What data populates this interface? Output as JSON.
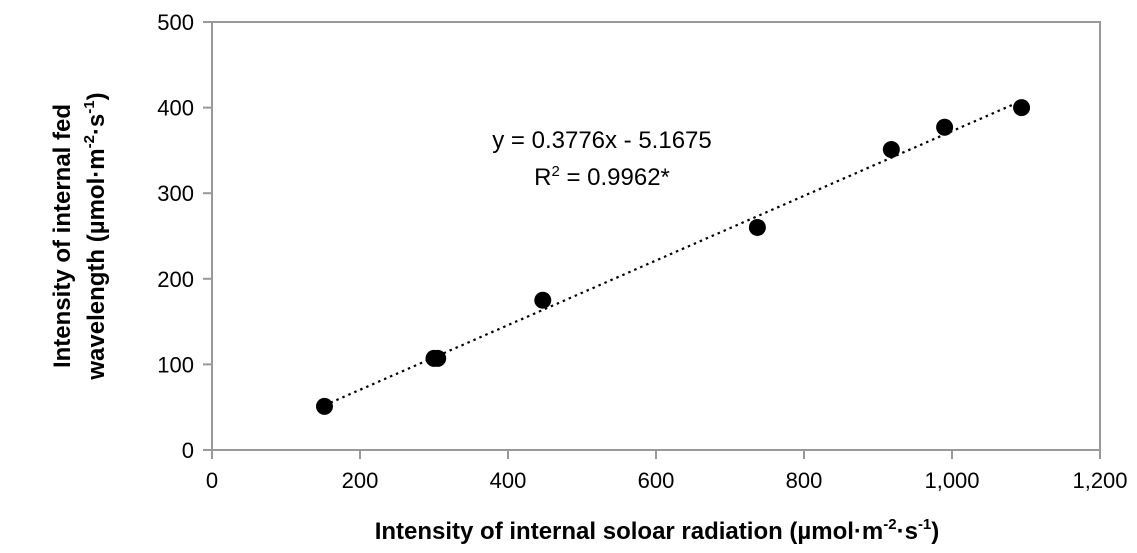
{
  "chart_data": {
    "type": "scatter",
    "x_axis": {
      "label_main": "Intensity of internal soloar radiation (µmol·m",
      "sup1": "-2",
      "mid": "·s",
      "sup2": "-1",
      "close": ")",
      "range": [
        0,
        1200
      ],
      "ticks": [
        0,
        200,
        400,
        600,
        800,
        1000,
        1200
      ],
      "tick_labels": [
        "0",
        "200",
        "400",
        "600",
        "800",
        "1,000",
        "1,200"
      ]
    },
    "y_axis": {
      "label_line1": "Intensity of internal fed",
      "label_line2_main": "wavelength (µmol·m",
      "sup1": "-2",
      "mid": "·s",
      "sup2": "-1",
      "close": ")",
      "range": [
        0,
        500
      ],
      "ticks": [
        0,
        100,
        200,
        300,
        400,
        500
      ],
      "tick_labels": [
        "0",
        "100",
        "200",
        "300",
        "400",
        "500"
      ]
    },
    "points": [
      {
        "x": 152,
        "y": 51
      },
      {
        "x": 300,
        "y": 107
      },
      {
        "x": 305,
        "y": 107
      },
      {
        "x": 447,
        "y": 175
      },
      {
        "x": 737,
        "y": 260
      },
      {
        "x": 918,
        "y": 351
      },
      {
        "x": 990,
        "y": 377
      },
      {
        "x": 1094,
        "y": 400
      }
    ],
    "trendline": {
      "slope": 0.3776,
      "intercept": -5.1675,
      "x_start": 152,
      "x_end": 1094,
      "equation": "y = 0.3776x - 5.1675",
      "r2_prefix": "R",
      "r2_sup": "2",
      "r2_value": " = 0.9962*"
    },
    "grid": false,
    "legend": "none",
    "colors": {
      "marker": "#000000",
      "frame": "#999999",
      "trend": "#000000"
    }
  }
}
